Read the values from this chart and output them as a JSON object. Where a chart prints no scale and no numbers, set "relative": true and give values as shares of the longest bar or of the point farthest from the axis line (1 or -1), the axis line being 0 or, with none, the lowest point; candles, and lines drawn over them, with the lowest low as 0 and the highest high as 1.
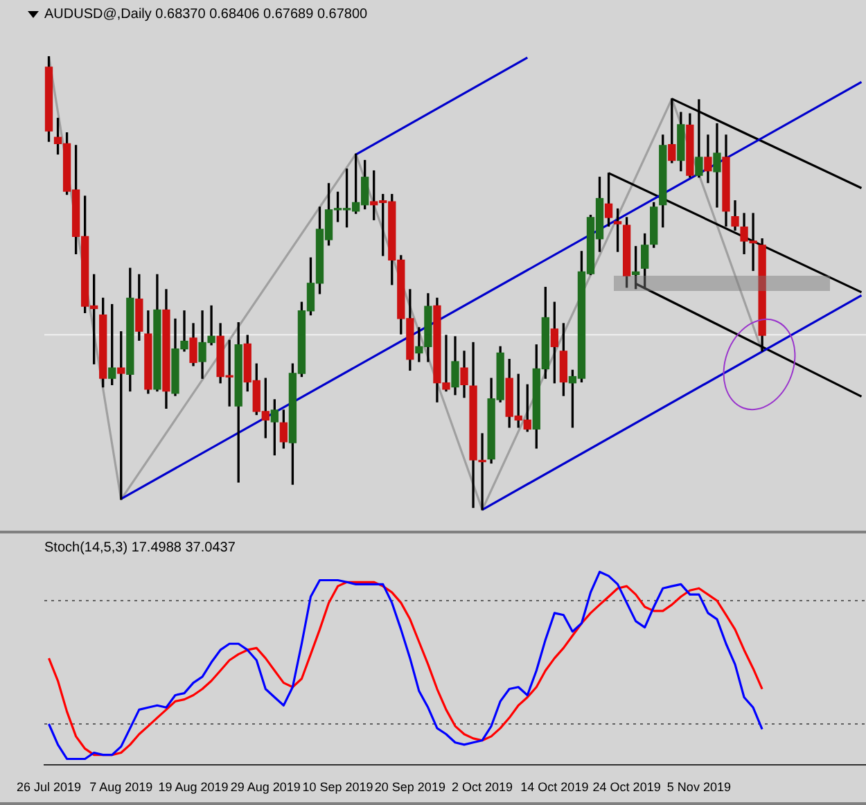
{
  "chart_data": [
    {
      "type": "candlestick",
      "title": "AUDUSD@,Daily 0.68370 0.68406 0.67689 0.67800",
      "relative": true,
      "tick_labels": false,
      "categories": [
        null,
        null,
        null,
        null,
        null,
        null,
        null,
        null,
        null,
        null,
        null,
        null,
        null,
        null,
        null,
        null,
        null,
        null,
        null,
        null,
        null,
        null,
        null,
        null,
        null,
        null,
        null,
        null,
        null,
        null,
        null,
        null,
        null,
        null,
        null,
        null,
        null,
        null,
        null,
        null,
        null,
        null,
        null,
        null,
        null,
        null,
        null,
        null,
        null,
        null,
        null,
        null,
        null,
        null,
        null,
        null,
        null,
        null,
        null,
        null,
        null,
        null,
        null,
        null,
        null,
        null,
        null,
        null,
        null,
        null,
        null,
        null,
        null,
        null,
        null,
        null,
        null,
        null,
        null,
        null,
        null,
        null,
        null,
        null,
        null,
        null,
        null,
        null,
        null,
        null,
        null
      ],
      "ohlc": [
        [
          0.977,
          1,
          0.813,
          0.836
        ],
        [
          0.822,
          0.864,
          0.785,
          0.808
        ],
        [
          0.808,
          0.832,
          0.696,
          0.703
        ],
        [
          0.706,
          0.804,
          0.565,
          0.603
        ],
        [
          0.603,
          0.692,
          0.435,
          0.449
        ],
        [
          0.45,
          0.519,
          0.322,
          0.444
        ],
        [
          0.43,
          0.467,
          0.271,
          0.29
        ],
        [
          0.29,
          0.453,
          0.276,
          0.313
        ],
        [
          0.313,
          0.393,
          0.023,
          0.301
        ],
        [
          0.299,
          0.533,
          0.262,
          0.467
        ],
        [
          0.465,
          0.519,
          0.374,
          0.394
        ],
        [
          0.388,
          0.439,
          0.257,
          0.266
        ],
        [
          0.266,
          0.519,
          0.262,
          0.441
        ],
        [
          0.441,
          0.486,
          0.224,
          0.262
        ],
        [
          0.257,
          0.421,
          0.252,
          0.355
        ],
        [
          0.355,
          0.439,
          0.35,
          0.372
        ],
        [
          0.379,
          0.411,
          0.318,
          0.325
        ],
        [
          0.327,
          0.439,
          0.29,
          0.369
        ],
        [
          0.369,
          0.45,
          0.364,
          0.383
        ],
        [
          0.383,
          0.411,
          0.28,
          0.294
        ],
        [
          0.294,
          0.374,
          0.229,
          0.293
        ],
        [
          0.229,
          0.413,
          0.061,
          0.364
        ],
        [
          0.366,
          0.385,
          0.262,
          0.282
        ],
        [
          0.285,
          0.322,
          0.21,
          0.217
        ],
        [
          0.217,
          0.29,
          0.159,
          0.198
        ],
        [
          0.194,
          0.243,
          0.121,
          0.22
        ],
        [
          0.192,
          0.22,
          0.136,
          0.15
        ],
        [
          0.148,
          0.322,
          0.056,
          0.301
        ],
        [
          0.301,
          0.458,
          0.294,
          0.439
        ],
        [
          0.439,
          0.556,
          0.43,
          0.5
        ],
        [
          0.5,
          0.668,
          0.477,
          0.619
        ],
        [
          0.596,
          0.72,
          0.584,
          0.662
        ],
        [
          0.662,
          0.701,
          0.636,
          0.664
        ],
        [
          0.662,
          0.752,
          0.624,
          0.664
        ],
        [
          0.659,
          0.785,
          0.654,
          0.678
        ],
        [
          0.673,
          0.771,
          0.664,
          0.734
        ],
        [
          0.68,
          0.748,
          0.64,
          0.673
        ],
        [
          0.682,
          0.696,
          0.561,
          0.678
        ],
        [
          0.68,
          0.696,
          0.497,
          0.551
        ],
        [
          0.551,
          0.561,
          0.388,
          0.422
        ],
        [
          0.422,
          0.486,
          0.308,
          0.332
        ],
        [
          0.346,
          0.402,
          0.327,
          0.36
        ],
        [
          0.36,
          0.477,
          0.327,
          0.449
        ],
        [
          0.45,
          0.467,
          0.238,
          0.28
        ],
        [
          0.28,
          0.385,
          0.262,
          0.266
        ],
        [
          0.271,
          0.382,
          0.254,
          0.327
        ],
        [
          0.313,
          0.35,
          0.248,
          0.276
        ],
        [
          0.273,
          0.369,
          0.005,
          0.11
        ],
        [
          0.107,
          0.168,
          0,
          0.106
        ],
        [
          0.112,
          0.29,
          0.103,
          0.245
        ],
        [
          0.243,
          0.36,
          0.238,
          0.346
        ],
        [
          0.29,
          0.332,
          0.182,
          0.206
        ],
        [
          0.207,
          0.299,
          0.182,
          0.198
        ],
        [
          0.198,
          0.276,
          0.173,
          0.178
        ],
        [
          0.178,
          0.364,
          0.136,
          0.311
        ],
        [
          0.311,
          0.491,
          0.29,
          0.424
        ],
        [
          0.399,
          0.458,
          0.28,
          0.36
        ],
        [
          0.35,
          0.411,
          0.252,
          0.282
        ],
        [
          0.28,
          0.308,
          0.182,
          0.294
        ],
        [
          0.29,
          0.57,
          0.282,
          0.525
        ],
        [
          0.521,
          0.65,
          0.519,
          0.645
        ],
        [
          0.598,
          0.734,
          0.57,
          0.687
        ],
        [
          0.675,
          0.743,
          0.626,
          0.645
        ],
        [
          0.636,
          0.664,
          0.57,
          0.631
        ],
        [
          0.628,
          0.645,
          0.491,
          0.516
        ],
        [
          0.519,
          0.581,
          0.488,
          0.525
        ],
        [
          0.533,
          0.609,
          0.488,
          0.584
        ],
        [
          0.586,
          0.678,
          0.579,
          0.668
        ],
        [
          0.673,
          0.827,
          0.624,
          0.804
        ],
        [
          0.806,
          0.907,
          0.766,
          0.771
        ],
        [
          0.771,
          0.877,
          0.748,
          0.85
        ],
        [
          0.849,
          0.874,
          0.734,
          0.738
        ],
        [
          0.738,
          0.905,
          0.734,
          0.778
        ],
        [
          0.778,
          0.827,
          0.722,
          0.748
        ],
        [
          0.746,
          0.852,
          0.668,
          0.787
        ],
        [
          0.778,
          0.827,
          0.626,
          0.659
        ],
        [
          0.647,
          0.682,
          0.617,
          0.626
        ],
        [
          0.624,
          0.654,
          0.565,
          0.593
        ],
        [
          0.593,
          0.654,
          0.528,
          0.589
        ],
        [
          0.584,
          0.598,
          0.35,
          0.385
        ],
        null,
        null,
        null,
        null,
        null,
        null,
        null,
        null,
        null,
        null,
        null
      ],
      "series": [
        {
          "type": "line",
          "color": "#0000cc",
          "values": [
            null,
            null,
            null,
            null,
            null,
            null,
            null,
            null,
            0.024,
            null,
            null,
            null,
            null,
            null,
            null,
            null,
            null,
            null,
            null,
            null,
            null,
            null,
            null,
            null,
            null,
            null,
            null,
            null,
            null,
            null,
            null,
            null,
            null,
            null,
            null,
            null,
            null,
            null,
            null,
            null,
            null,
            null,
            null,
            null,
            null,
            null,
            null,
            null,
            null,
            null,
            null,
            null,
            null,
            null,
            null,
            null,
            null,
            null,
            null,
            null,
            null,
            null,
            null,
            null,
            null,
            null,
            null,
            null,
            null,
            null,
            null,
            null,
            null,
            null,
            null,
            null,
            null,
            null,
            null,
            null,
            null,
            null,
            null,
            null,
            null,
            null,
            null,
            null,
            null,
            null,
            0.944
          ]
        },
        {
          "type": "line",
          "color": "#0000cc",
          "values": [
            null,
            null,
            null,
            null,
            null,
            null,
            null,
            null,
            null,
            null,
            null,
            null,
            null,
            null,
            null,
            null,
            null,
            null,
            null,
            null,
            null,
            null,
            null,
            null,
            null,
            null,
            null,
            null,
            null,
            null,
            null,
            null,
            null,
            null,
            0.784,
            null,
            null,
            null,
            null,
            null,
            null,
            null,
            null,
            null,
            null,
            null,
            null,
            null,
            null,
            null,
            null,
            null,
            null,
            0.998,
            null,
            null,
            null,
            null,
            null,
            null,
            null,
            null,
            null,
            null,
            null,
            null,
            null,
            null,
            null,
            null,
            null,
            null,
            null,
            null,
            null,
            null,
            null,
            null,
            null,
            null,
            null,
            null,
            null,
            null,
            null,
            null,
            null,
            null,
            null,
            null,
            null
          ]
        },
        {
          "type": "line",
          "color": "#0000cc",
          "values": [
            null,
            null,
            null,
            null,
            null,
            null,
            null,
            null,
            null,
            null,
            null,
            null,
            null,
            null,
            null,
            null,
            null,
            null,
            null,
            null,
            null,
            null,
            null,
            null,
            null,
            null,
            null,
            null,
            null,
            null,
            null,
            null,
            null,
            null,
            null,
            null,
            null,
            null,
            null,
            null,
            null,
            null,
            null,
            null,
            null,
            null,
            null,
            null,
            0,
            null,
            null,
            null,
            null,
            null,
            null,
            null,
            null,
            null,
            null,
            null,
            null,
            null,
            null,
            null,
            null,
            null,
            null,
            null,
            null,
            null,
            null,
            null,
            null,
            null,
            null,
            null,
            null,
            null,
            null,
            null,
            null,
            null,
            null,
            null,
            null,
            null,
            null,
            null,
            null,
            null,
            0.473
          ]
        },
        {
          "type": "line",
          "color": "#000000",
          "values": [
            null,
            null,
            null,
            null,
            null,
            null,
            null,
            null,
            null,
            null,
            null,
            null,
            null,
            null,
            null,
            null,
            null,
            null,
            null,
            null,
            null,
            null,
            null,
            null,
            null,
            null,
            null,
            null,
            null,
            null,
            null,
            null,
            null,
            null,
            null,
            null,
            null,
            null,
            null,
            null,
            null,
            null,
            null,
            null,
            null,
            null,
            null,
            null,
            null,
            null,
            null,
            null,
            null,
            null,
            null,
            null,
            null,
            null,
            null,
            null,
            null,
            null,
            0.743,
            null,
            null,
            null,
            null,
            null,
            null,
            null,
            null,
            null,
            null,
            null,
            null,
            null,
            null,
            null,
            null,
            null,
            null,
            null,
            null,
            null,
            null,
            null,
            null,
            null,
            null,
            null,
            0.48
          ]
        },
        {
          "type": "line",
          "color": "#000000",
          "values": [
            null,
            null,
            null,
            null,
            null,
            null,
            null,
            null,
            null,
            null,
            null,
            null,
            null,
            null,
            null,
            null,
            null,
            null,
            null,
            null,
            null,
            null,
            null,
            null,
            null,
            null,
            null,
            null,
            null,
            null,
            null,
            null,
            null,
            null,
            null,
            null,
            null,
            null,
            null,
            null,
            null,
            null,
            null,
            null,
            null,
            null,
            null,
            null,
            null,
            null,
            null,
            null,
            null,
            null,
            null,
            null,
            null,
            null,
            null,
            null,
            null,
            null,
            null,
            null,
            null,
            null,
            null,
            null,
            null,
            0.907,
            null,
            null,
            null,
            null,
            null,
            null,
            null,
            null,
            null,
            null,
            null,
            null,
            null,
            null,
            null,
            null,
            null,
            null,
            null,
            null,
            0.71
          ]
        },
        {
          "type": "line",
          "color": "#000000",
          "values": [
            null,
            null,
            null,
            null,
            null,
            null,
            null,
            null,
            null,
            null,
            null,
            null,
            null,
            null,
            null,
            null,
            null,
            null,
            null,
            null,
            null,
            null,
            null,
            null,
            null,
            null,
            null,
            null,
            null,
            null,
            null,
            null,
            null,
            null,
            null,
            null,
            null,
            null,
            null,
            null,
            null,
            null,
            null,
            null,
            null,
            null,
            null,
            null,
            null,
            null,
            null,
            null,
            null,
            null,
            null,
            null,
            null,
            null,
            null,
            null,
            null,
            null,
            null,
            null,
            null,
            0.499,
            null,
            null,
            null,
            null,
            null,
            null,
            null,
            null,
            null,
            null,
            null,
            null,
            null,
            null,
            null,
            null,
            null,
            null,
            null,
            null,
            null,
            null,
            null,
            null,
            0.25
          ]
        },
        {
          "type": "line",
          "color": "#a0a0a0",
          "values": [
            1,
            null,
            null,
            null,
            null,
            null,
            null,
            null,
            0.023,
            null,
            null,
            null,
            null,
            null,
            null,
            null,
            null,
            null,
            null,
            null,
            null,
            null,
            null,
            null,
            null,
            null,
            null,
            null,
            null,
            null,
            null,
            null,
            null,
            null,
            0.785,
            null,
            null,
            null,
            null,
            null,
            null,
            null,
            null,
            null,
            null,
            null,
            null,
            null,
            0,
            null,
            null,
            null,
            null,
            null,
            null,
            null,
            null,
            null,
            null,
            null,
            null,
            null,
            null,
            null,
            null,
            null,
            null,
            null,
            null,
            0.907,
            null,
            null,
            null,
            null,
            null,
            null,
            null,
            null,
            null,
            0.35,
            null,
            null,
            null,
            null,
            null,
            null,
            null,
            null,
            null,
            null,
            null
          ]
        }
      ],
      "ref_lines": [
        {
          "axis": "y",
          "value": 0.386,
          "color": "#f0f0f0"
        }
      ]
    },
    {
      "type": "line",
      "title": "Stoch(14,5,3) 17.4988 37.0437",
      "tick_labels": "x",
      "relative": true,
      "categories": [
        "26 Jul 2019",
        null,
        null,
        null,
        null,
        null,
        null,
        null,
        "7 Aug 2019",
        null,
        null,
        null,
        null,
        null,
        null,
        null,
        "19 Aug 2019",
        null,
        null,
        null,
        null,
        null,
        null,
        null,
        "29 Aug 2019",
        null,
        null,
        null,
        null,
        null,
        null,
        null,
        "10 Sep 2019",
        null,
        null,
        null,
        null,
        null,
        null,
        null,
        "20 Sep 2019",
        null,
        null,
        null,
        null,
        null,
        null,
        null,
        "2 Oct 2019",
        null,
        null,
        null,
        null,
        null,
        null,
        null,
        "14 Oct 2019",
        null,
        null,
        null,
        null,
        null,
        null,
        null,
        "24 Oct 2019",
        null,
        null,
        null,
        null,
        null,
        null,
        null,
        "5 Nov 2019",
        null,
        null,
        null,
        null,
        null,
        null,
        null,
        null,
        null,
        null,
        null,
        null,
        null,
        null,
        null,
        null,
        null,
        null
      ],
      "series": [
        {
          "color": "#0000ff",
          "values": [
            0.213,
            0.106,
            0.032,
            0.032,
            0.032,
            0.064,
            0.053,
            0.053,
            0.096,
            0.191,
            0.287,
            0.298,
            0.309,
            0.298,
            0.362,
            0.372,
            0.426,
            0.457,
            0.532,
            0.596,
            0.628,
            0.628,
            0.596,
            0.543,
            0.394,
            0.351,
            0.309,
            0.404,
            0.628,
            0.872,
            0.957,
            0.957,
            0.957,
            0.947,
            0.936,
            0.936,
            0.936,
            0.936,
            0.84,
            0.702,
            0.553,
            0.383,
            0.298,
            0.191,
            0.16,
            0.117,
            0.106,
            0.117,
            0.128,
            0.202,
            0.33,
            0.394,
            0.404,
            0.362,
            0.489,
            0.649,
            0.787,
            0.777,
            0.691,
            0.734,
            0.894,
            1,
            0.979,
            0.936,
            0.84,
            0.745,
            0.713,
            0.819,
            0.915,
            0.926,
            0.936,
            0.883,
            0.883,
            0.787,
            0.755,
            0.628,
            0.521,
            0.351,
            0.298,
            0.186,
            null,
            null,
            null,
            null,
            null,
            null,
            null,
            null,
            null,
            null,
            null
          ]
        },
        {
          "color": "#ff0000",
          "values": [
            0.553,
            0.436,
            0.277,
            0.149,
            0.085,
            0.053,
            0.053,
            0.053,
            0.064,
            0.106,
            0.16,
            0.202,
            0.245,
            0.287,
            0.33,
            0.34,
            0.362,
            0.394,
            0.436,
            0.489,
            0.543,
            0.574,
            0.596,
            0.606,
            0.553,
            0.489,
            0.426,
            0.404,
            0.447,
            0.574,
            0.702,
            0.84,
            0.926,
            0.947,
            0.947,
            0.947,
            0.947,
            0.926,
            0.894,
            0.84,
            0.755,
            0.638,
            0.521,
            0.394,
            0.287,
            0.202,
            0.16,
            0.138,
            0.128,
            0.149,
            0.191,
            0.245,
            0.309,
            0.351,
            0.404,
            0.489,
            0.553,
            0.606,
            0.67,
            0.734,
            0.787,
            0.83,
            0.872,
            0.915,
            0.926,
            0.883,
            0.819,
            0.798,
            0.798,
            0.83,
            0.872,
            0.904,
            0.915,
            0.883,
            0.851,
            0.777,
            0.702,
            0.596,
            0.5,
            0.394,
            null,
            null,
            null,
            null,
            null,
            null,
            null,
            null,
            null,
            null,
            null
          ]
        }
      ],
      "ref_lines": [
        {
          "axis": "y",
          "value": 0.851,
          "color": "#606060",
          "line_style": "dotted"
        },
        {
          "axis": "y",
          "value": 0.213,
          "color": "#606060",
          "line_style": "dotted"
        }
      ]
    }
  ]
}
